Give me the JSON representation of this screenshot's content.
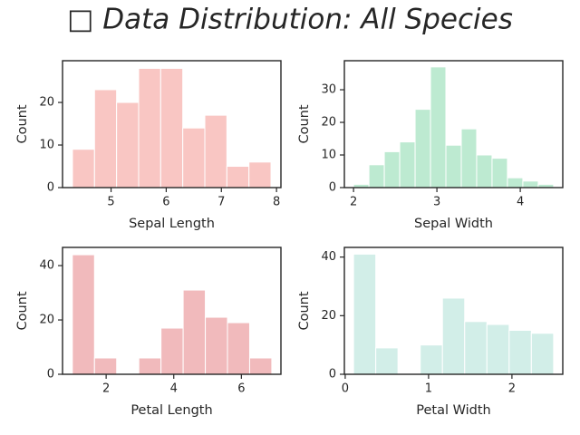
{
  "title": "□ Data Distribution: All Species",
  "chart_data": [
    {
      "type": "histogram",
      "xlabel": "Sepal Length",
      "ylabel": "Count",
      "color": "#f9c6c3",
      "bins": [
        4.3,
        4.7,
        5.1,
        5.5,
        5.9,
        6.3,
        6.7,
        7.1,
        7.5,
        7.9
      ],
      "values": [
        9,
        23,
        20,
        28,
        28,
        14,
        17,
        5,
        6
      ],
      "xlim": [
        4.12,
        8.08
      ],
      "ylim": [
        0,
        29.8
      ],
      "xticks": [
        5,
        6,
        7,
        8
      ],
      "yticks": [
        0,
        10,
        20
      ]
    },
    {
      "type": "histogram",
      "xlabel": "Sepal Width",
      "ylabel": "Count",
      "color": "#bdead1",
      "bins": [
        2.0,
        2.1846,
        2.3692,
        2.5538,
        2.7385,
        2.9231,
        3.1077,
        3.2923,
        3.4769,
        3.6615,
        3.8462,
        4.0308,
        4.2154,
        4.4
      ],
      "values": [
        1,
        7,
        11,
        14,
        24,
        37,
        13,
        18,
        10,
        9,
        3,
        2,
        1
      ],
      "xlim": [
        1.89,
        4.51
      ],
      "ylim": [
        0,
        38.9
      ],
      "xticks": [
        2,
        3,
        4
      ],
      "yticks": [
        0,
        10,
        20,
        30
      ]
    },
    {
      "type": "histogram",
      "xlabel": "Petal Length",
      "ylabel": "Count",
      "color": "#f1babc",
      "bins": [
        1.0,
        1.6556,
        2.3111,
        2.9667,
        3.6222,
        4.2778,
        4.9333,
        5.5889,
        6.2444,
        6.9
      ],
      "values": [
        44,
        6,
        0,
        6,
        17,
        31,
        21,
        19,
        6
      ],
      "xlim": [
        0.71,
        7.17
      ],
      "ylim": [
        0,
        46.7
      ],
      "xticks": [
        2,
        4,
        6
      ],
      "yticks": [
        0,
        20,
        40
      ]
    },
    {
      "type": "histogram",
      "xlabel": "Petal Width",
      "ylabel": "Count",
      "color": "#d2eee8",
      "bins": [
        0.1,
        0.3667,
        0.6333,
        0.9,
        1.1667,
        1.4333,
        1.7,
        1.9667,
        2.2333,
        2.5
      ],
      "values": [
        41,
        9,
        0,
        10,
        26,
        18,
        17,
        15,
        14
      ],
      "xlim": [
        -0.01,
        2.61
      ],
      "ylim": [
        0,
        43.3
      ],
      "xticks": [
        0,
        1,
        2
      ],
      "yticks": [
        0,
        20,
        40
      ]
    }
  ]
}
